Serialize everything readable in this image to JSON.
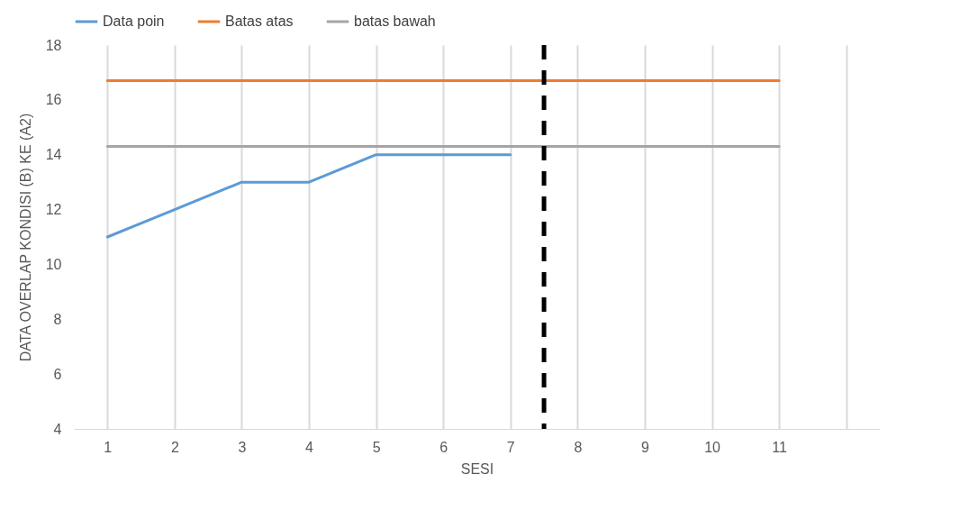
{
  "chart_data": {
    "type": "line",
    "xlabel": "SESI",
    "ylabel": "DATA OVERLAP KONDISI (B) KE (A2)",
    "x": [
      1,
      2,
      3,
      4,
      5,
      6,
      7,
      8,
      9,
      10,
      11
    ],
    "xlim": [
      0.5,
      12.5
    ],
    "xticks": [
      1,
      2,
      3,
      4,
      5,
      6,
      7,
      8,
      9,
      10,
      11,
      {
        "value": 12,
        "label": null
      }
    ],
    "ylim": [
      4,
      18
    ],
    "yticks": [
      4,
      6,
      8,
      10,
      12,
      14,
      16,
      18
    ],
    "series": [
      {
        "name": "Data poin",
        "color": "#5b9bd5",
        "values": [
          11,
          12,
          13,
          13,
          14,
          14,
          14,
          null,
          null,
          null,
          null
        ]
      },
      {
        "name": "Batas atas",
        "color": "#ed7d31",
        "values": [
          16.7,
          16.7,
          16.7,
          16.7,
          16.7,
          16.7,
          16.7,
          16.7,
          16.7,
          16.7,
          16.7
        ]
      },
      {
        "name": "batas bawah",
        "color": "#a5a5a5",
        "values": [
          14.3,
          14.3,
          14.3,
          14.3,
          14.3,
          14.3,
          14.3,
          14.3,
          14.3,
          14.3,
          14.3
        ]
      }
    ],
    "ref_lines": [
      {
        "axis": "x",
        "value": 7.5,
        "color": "#000000",
        "line_style": "dashed"
      }
    ],
    "grid": "x",
    "legend": "top",
    "marker": "none",
    "line_style": "solid"
  }
}
